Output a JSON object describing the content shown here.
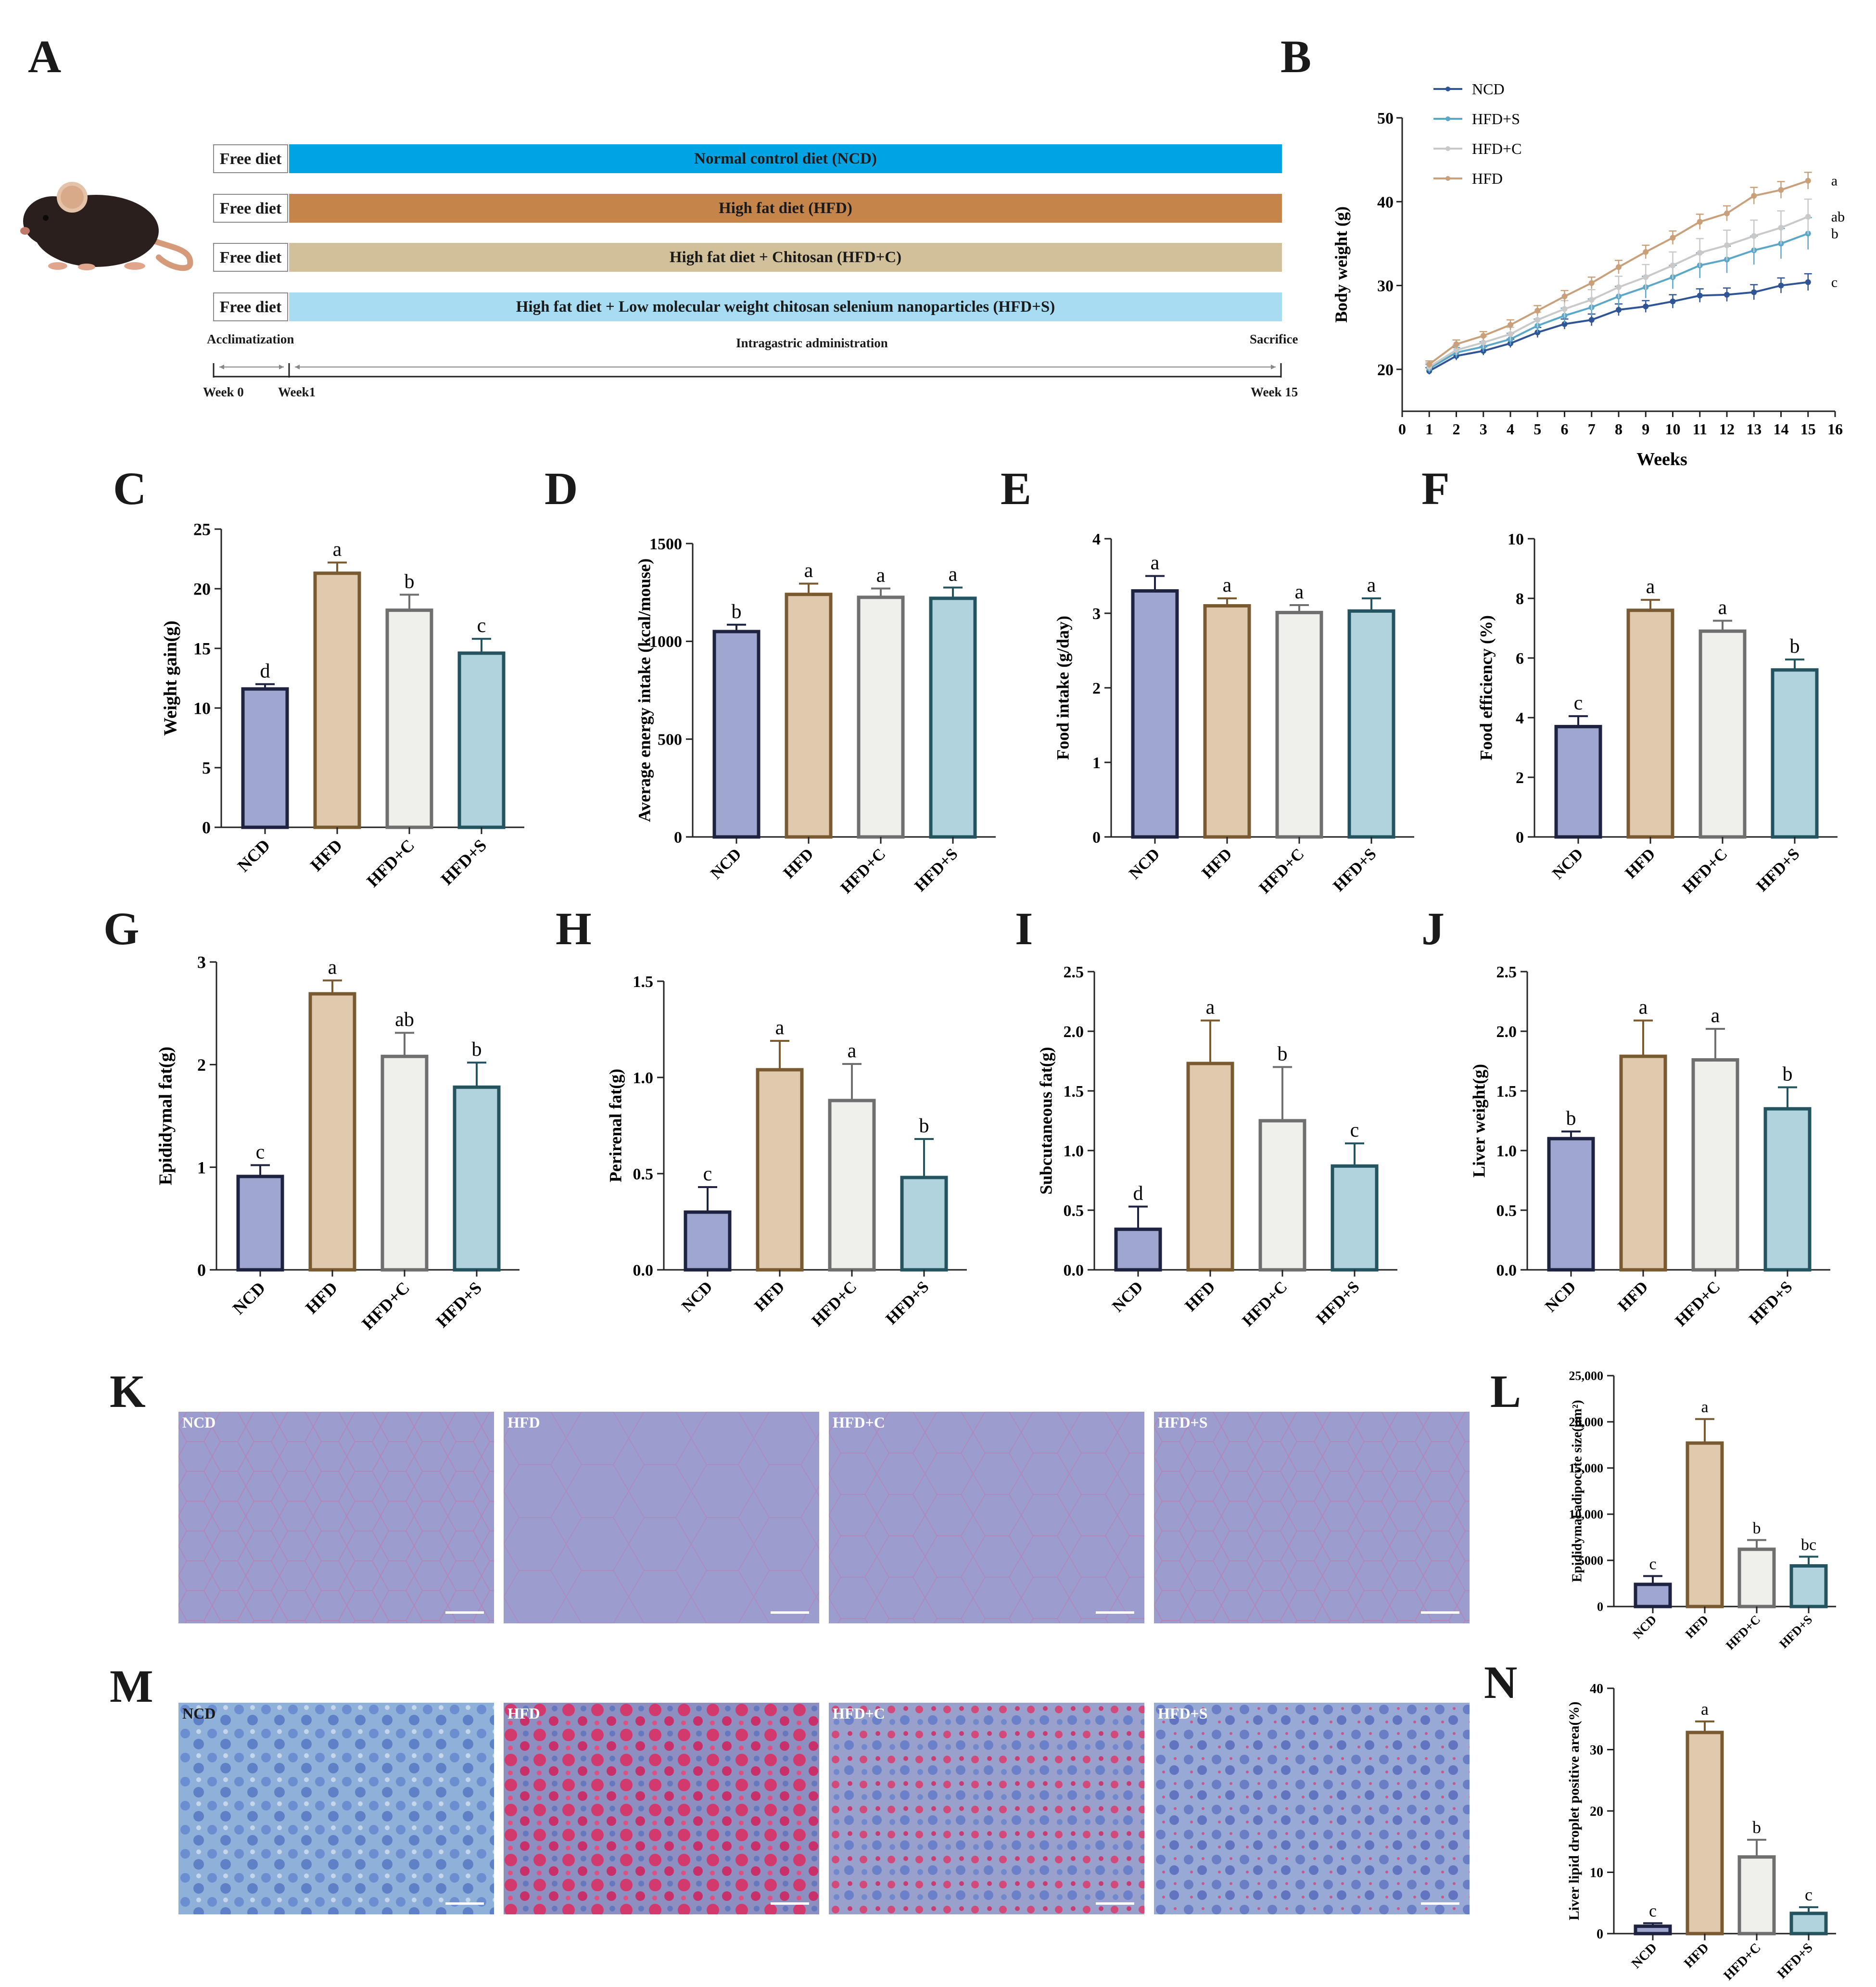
{
  "panel_labels": {
    "A": "A",
    "B": "B",
    "C": "C",
    "D": "D",
    "E": "E",
    "F": "F",
    "G": "G",
    "H": "H",
    "I": "I",
    "J": "J",
    "K": "K",
    "L": "L",
    "M": "M",
    "N": "N"
  },
  "colors": {
    "ncd_blue": "#00a4e4",
    "hfd_brown": "#c4844a",
    "hfdc_tan": "#d2c09a",
    "hfds_light": "#a8dcf2",
    "bar_ncd_fill": "#9fa6cf",
    "bar_ncd_edge": "#1e2342",
    "bar_hfd_fill": "#dfcaad",
    "bar_hfd_edge": "#7a5a30",
    "bar_hfdc_fill": "#efefeb",
    "bar_hfdc_edge": "#6f6f6f",
    "bar_hfds_fill": "#b0d3de",
    "bar_hfds_edge": "#24545f",
    "line_ncd": "#2f5597",
    "line_hfds": "#5aa7c9",
    "line_hfdc": "#c9c9c9",
    "line_hfd": "#c8a07a"
  },
  "panel_a": {
    "rows": [
      {
        "free": "Free diet",
        "label": "Normal control diet (NCD)",
        "color": "#00a4e4"
      },
      {
        "free": "Free diet",
        "label": "High fat diet (HFD)",
        "color": "#c4844a"
      },
      {
        "free": "Free diet",
        "label": "High fat diet + Chitosan (HFD+C)",
        "color": "#d2c09a"
      },
      {
        "free": "Free diet",
        "label": "High fat diet + Low molecular weight chitosan selenium nanoparticles (HFD+S)",
        "color": "#a8dcf2"
      }
    ],
    "timeline": {
      "acclimatization": "Acclimatization",
      "intragastric": "Intragastric administration",
      "sacrifice": "Sacrifice",
      "week0": "Week 0",
      "week1": "Week1",
      "week15": "Week 15"
    }
  },
  "micrographs": {
    "k": [
      "NCD",
      "HFD",
      "HFD+C",
      "HFD+S"
    ],
    "m": [
      "NCD",
      "HFD",
      "HFD+C",
      "HFD+S"
    ]
  },
  "chart_data": [
    {
      "id": "B",
      "type": "line",
      "xlabel": "Weeks",
      "ylabel": "Body weight (g)",
      "xlim": [
        0,
        16
      ],
      "ylim": [
        15,
        50
      ],
      "xticks": [
        "0",
        "1",
        "2",
        "3",
        "4",
        "5",
        "6",
        "7",
        "8",
        "9",
        "10",
        "11",
        "12",
        "13",
        "14",
        "15",
        "16"
      ],
      "yticks": [
        "20",
        "30",
        "40",
        "50"
      ],
      "x": [
        1,
        2,
        3,
        4,
        5,
        6,
        7,
        8,
        9,
        10,
        11,
        12,
        13,
        14,
        15
      ],
      "series": [
        {
          "name": "NCD",
          "color": "#2f5597",
          "letter": "c",
          "values": [
            19.8,
            21.6,
            22.2,
            23.1,
            24.4,
            25.4,
            25.9,
            27.1,
            27.5,
            28.1,
            28.8,
            28.9,
            29.2,
            30.0,
            30.4
          ],
          "err": [
            0.4,
            0.5,
            0.5,
            0.5,
            0.6,
            0.6,
            0.7,
            0.7,
            0.7,
            0.8,
            0.8,
            0.8,
            0.9,
            0.9,
            1.0
          ]
        },
        {
          "name": "HFD+S",
          "color": "#5aa7c9",
          "letter": "b",
          "values": [
            20.1,
            22.0,
            22.7,
            23.6,
            25.2,
            26.4,
            27.4,
            28.7,
            29.8,
            31.0,
            32.4,
            33.1,
            34.2,
            35.0,
            36.2
          ],
          "err": [
            0.5,
            0.6,
            0.6,
            0.7,
            0.8,
            0.9,
            1.0,
            1.2,
            1.3,
            1.4,
            1.5,
            1.6,
            1.7,
            1.8,
            1.9
          ]
        },
        {
          "name": "HFD+C",
          "color": "#c9c9c9",
          "letter": "ab",
          "values": [
            20.3,
            22.3,
            23.2,
            24.2,
            25.9,
            27.2,
            28.3,
            29.8,
            31.0,
            32.4,
            33.9,
            34.8,
            35.9,
            36.9,
            38.2
          ],
          "err": [
            0.5,
            0.6,
            0.7,
            0.8,
            0.9,
            1.0,
            1.2,
            1.3,
            1.5,
            1.6,
            1.7,
            1.8,
            1.9,
            2.0,
            2.1
          ]
        },
        {
          "name": "HFD",
          "color": "#c8a07a",
          "letter": "a",
          "values": [
            20.6,
            23.0,
            24.0,
            25.3,
            27.0,
            28.7,
            30.3,
            32.2,
            34.0,
            35.7,
            37.6,
            38.6,
            40.7,
            41.4,
            42.5
          ],
          "err": [
            0.4,
            0.5,
            0.5,
            0.6,
            0.6,
            0.7,
            0.7,
            0.8,
            0.8,
            0.8,
            0.9,
            0.9,
            1.0,
            1.0,
            1.0
          ]
        }
      ]
    },
    {
      "id": "C",
      "type": "bar",
      "ylabel": "Weight gain(g)",
      "categories": [
        "NCD",
        "HFD",
        "HFD+C",
        "HFD+S"
      ],
      "values": [
        11.6,
        21.3,
        18.2,
        14.6
      ],
      "err": [
        0.4,
        0.9,
        1.3,
        1.2
      ],
      "letters": [
        "d",
        "a",
        "b",
        "c"
      ],
      "ylim": [
        0,
        25
      ],
      "yticks": [
        "0",
        "5",
        "10",
        "15",
        "20",
        "25"
      ]
    },
    {
      "id": "D",
      "type": "bar",
      "ylabel": "Average energy intake  (kcal/mouse)",
      "categories": [
        "NCD",
        "HFD",
        "HFD+C",
        "HFD+S"
      ],
      "values": [
        1050,
        1240,
        1225,
        1220
      ],
      "err": [
        35,
        55,
        45,
        55
      ],
      "letters": [
        "b",
        "a",
        "a",
        "a"
      ],
      "ylim": [
        0,
        1500
      ],
      "yticks": [
        "0",
        "500",
        "1000",
        "1500"
      ]
    },
    {
      "id": "E",
      "type": "bar",
      "ylabel": "Food intake (g/day)",
      "categories": [
        "NCD",
        "HFD",
        "HFD+C",
        "HFD+S"
      ],
      "values": [
        3.3,
        3.1,
        3.01,
        3.03
      ],
      "err": [
        0.2,
        0.1,
        0.1,
        0.17
      ],
      "letters": [
        "a",
        "a",
        "a",
        "a"
      ],
      "ylim": [
        0,
        4
      ],
      "yticks": [
        "0",
        "1",
        "2",
        "3",
        "4"
      ]
    },
    {
      "id": "F",
      "type": "bar",
      "ylabel": "Food efficiency (%)",
      "categories": [
        "NCD",
        "HFD",
        "HFD+C",
        "HFD+S"
      ],
      "values": [
        3.7,
        7.6,
        6.9,
        5.6
      ],
      "err": [
        0.35,
        0.35,
        0.35,
        0.35
      ],
      "letters": [
        "c",
        "a",
        "a",
        "b"
      ],
      "ylim": [
        0,
        10
      ],
      "yticks": [
        "0",
        "2",
        "4",
        "6",
        "8",
        "10"
      ]
    },
    {
      "id": "G",
      "type": "bar",
      "ylabel": "Epididymal fat(g)",
      "categories": [
        "NCD",
        "HFD",
        "HFD+C",
        "HFD+S"
      ],
      "values": [
        0.91,
        2.69,
        2.08,
        1.78
      ],
      "err": [
        0.11,
        0.13,
        0.23,
        0.24
      ],
      "letters": [
        "c",
        "a",
        "ab",
        "b"
      ],
      "ylim": [
        0,
        3
      ],
      "yticks": [
        "0",
        "1",
        "2",
        "3"
      ]
    },
    {
      "id": "H",
      "type": "bar",
      "ylabel": "Perirenal fat(g)",
      "categories": [
        "NCD",
        "HFD",
        "HFD+C",
        "HFD+S"
      ],
      "values": [
        0.3,
        1.04,
        0.88,
        0.48
      ],
      "err": [
        0.13,
        0.15,
        0.19,
        0.2
      ],
      "letters": [
        "c",
        "a",
        "a",
        "b"
      ],
      "ylim": [
        0,
        1.5
      ],
      "yticks": [
        "0.0",
        "0.5",
        "1.0",
        "1.5"
      ]
    },
    {
      "id": "I",
      "type": "bar",
      "ylabel": "Subcutaneous fat(g)",
      "categories": [
        "NCD",
        "HFD",
        "HFD+C",
        "HFD+S"
      ],
      "values": [
        0.34,
        1.73,
        1.25,
        0.87
      ],
      "err": [
        0.19,
        0.36,
        0.45,
        0.19
      ],
      "letters": [
        "d",
        "a",
        "b",
        "c"
      ],
      "ylim": [
        0,
        2.5
      ],
      "yticks": [
        "0.0",
        "0.5",
        "1.0",
        "1.5",
        "2.0",
        "2.5"
      ]
    },
    {
      "id": "J",
      "type": "bar",
      "ylabel": "Liver weight(g)",
      "categories": [
        "NCD",
        "HFD",
        "HFD+C",
        "HFD+S"
      ],
      "values": [
        1.1,
        1.79,
        1.76,
        1.35
      ],
      "err": [
        0.06,
        0.3,
        0.26,
        0.18
      ],
      "letters": [
        "b",
        "a",
        "a",
        "b"
      ],
      "ylim": [
        0,
        2.5
      ],
      "yticks": [
        "0.0",
        "0.5",
        "1.0",
        "1.5",
        "2.0",
        "2.5"
      ]
    },
    {
      "id": "L",
      "type": "bar",
      "ylabel": "Epididymal adipocyte size(μm²)",
      "categories": [
        "NCD",
        "HFD",
        "HFD+C",
        "HFD+S"
      ],
      "values": [
        2400,
        17700,
        6200,
        4400
      ],
      "err": [
        900,
        2600,
        1000,
        1000
      ],
      "letters": [
        "c",
        "a",
        "b",
        "bc"
      ],
      "ylim": [
        0,
        25000
      ],
      "yticks": [
        "0",
        "5000",
        "10,000",
        "15,000",
        "20,000",
        "25,000"
      ]
    },
    {
      "id": "N",
      "type": "bar",
      "ylabel": "Liver lipid droplet positive area(%)",
      "categories": [
        "NCD",
        "HFD",
        "HFD+C",
        "HFD+S"
      ],
      "values": [
        1.2,
        32.8,
        12.5,
        3.3
      ],
      "err": [
        0.5,
        1.8,
        2.8,
        1.0
      ],
      "letters": [
        "c",
        "a",
        "b",
        "c"
      ],
      "ylim": [
        0,
        40
      ],
      "yticks": [
        "0",
        "10",
        "20",
        "30",
        "40"
      ]
    }
  ]
}
